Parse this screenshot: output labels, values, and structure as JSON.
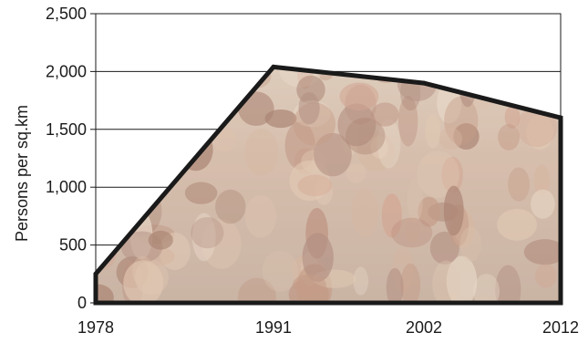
{
  "chart_data": {
    "type": "area",
    "title": "",
    "xlabel": "",
    "ylabel": "Persons per sq.km",
    "x_tick_labels": [
      "1978",
      "1991",
      "2002",
      "2012"
    ],
    "y_tick_labels": [
      "0",
      "500",
      "1,000",
      "1,500",
      "2,000",
      "2,500"
    ],
    "x_ticks": [
      1978,
      1991,
      2002,
      2012
    ],
    "y_ticks": [
      0,
      500,
      1000,
      1500,
      2000,
      2500
    ],
    "xlim": [
      1978,
      2012
    ],
    "ylim": [
      0,
      2500
    ],
    "grid": true,
    "fill_description": "photograph of a crowd of children and adults",
    "series": [
      {
        "x": [
          1978,
          1991,
          2002,
          2012
        ],
        "values": [
          250,
          2040,
          1900,
          1600
        ]
      }
    ],
    "colors": {
      "line": "#1a1a1a",
      "grid": "#1a1a1a",
      "fill_tint": "#d9c8b4"
    }
  }
}
